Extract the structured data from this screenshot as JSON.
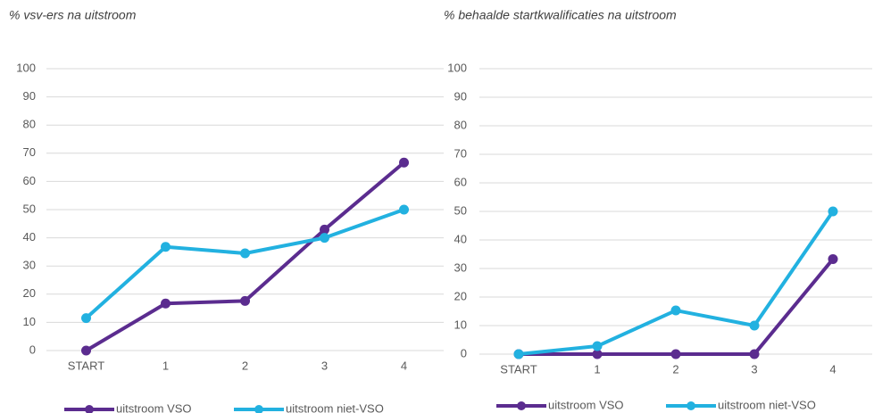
{
  "chart_data": [
    {
      "type": "line",
      "title": "% vsv-ers na uitstroom",
      "categories": [
        "START",
        "1",
        "2",
        "3",
        "4"
      ],
      "series": [
        {
          "name": "uitstroom VSO",
          "color": "#5b2c8f",
          "values": [
            0,
            16.7,
            17.6,
            42.9,
            66.7
          ]
        },
        {
          "name": "uitstroom niet-VSO",
          "color": "#22b1e0",
          "values": [
            11.5,
            36.8,
            34.5,
            40,
            50
          ]
        }
      ],
      "ylim": [
        0,
        100
      ],
      "yticks": [
        0,
        10,
        20,
        30,
        40,
        50,
        60,
        70,
        80,
        90,
        100
      ],
      "grid": true,
      "legend": "bottom"
    },
    {
      "type": "line",
      "title": "% behaalde startkwalificaties na uitstroom",
      "categories": [
        "START",
        "1",
        "2",
        "3",
        "4"
      ],
      "series": [
        {
          "name": "uitstroom VSO",
          "color": "#5b2c8f",
          "values": [
            0,
            0,
            0,
            0,
            33.3
          ]
        },
        {
          "name": "uitstroom niet-VSO",
          "color": "#22b1e0",
          "values": [
            0,
            2.8,
            15.3,
            10,
            50
          ]
        }
      ],
      "ylim": [
        0,
        100
      ],
      "yticks": [
        0,
        10,
        20,
        30,
        40,
        50,
        60,
        70,
        80,
        90,
        100
      ],
      "grid": true,
      "legend": "bottom"
    }
  ]
}
